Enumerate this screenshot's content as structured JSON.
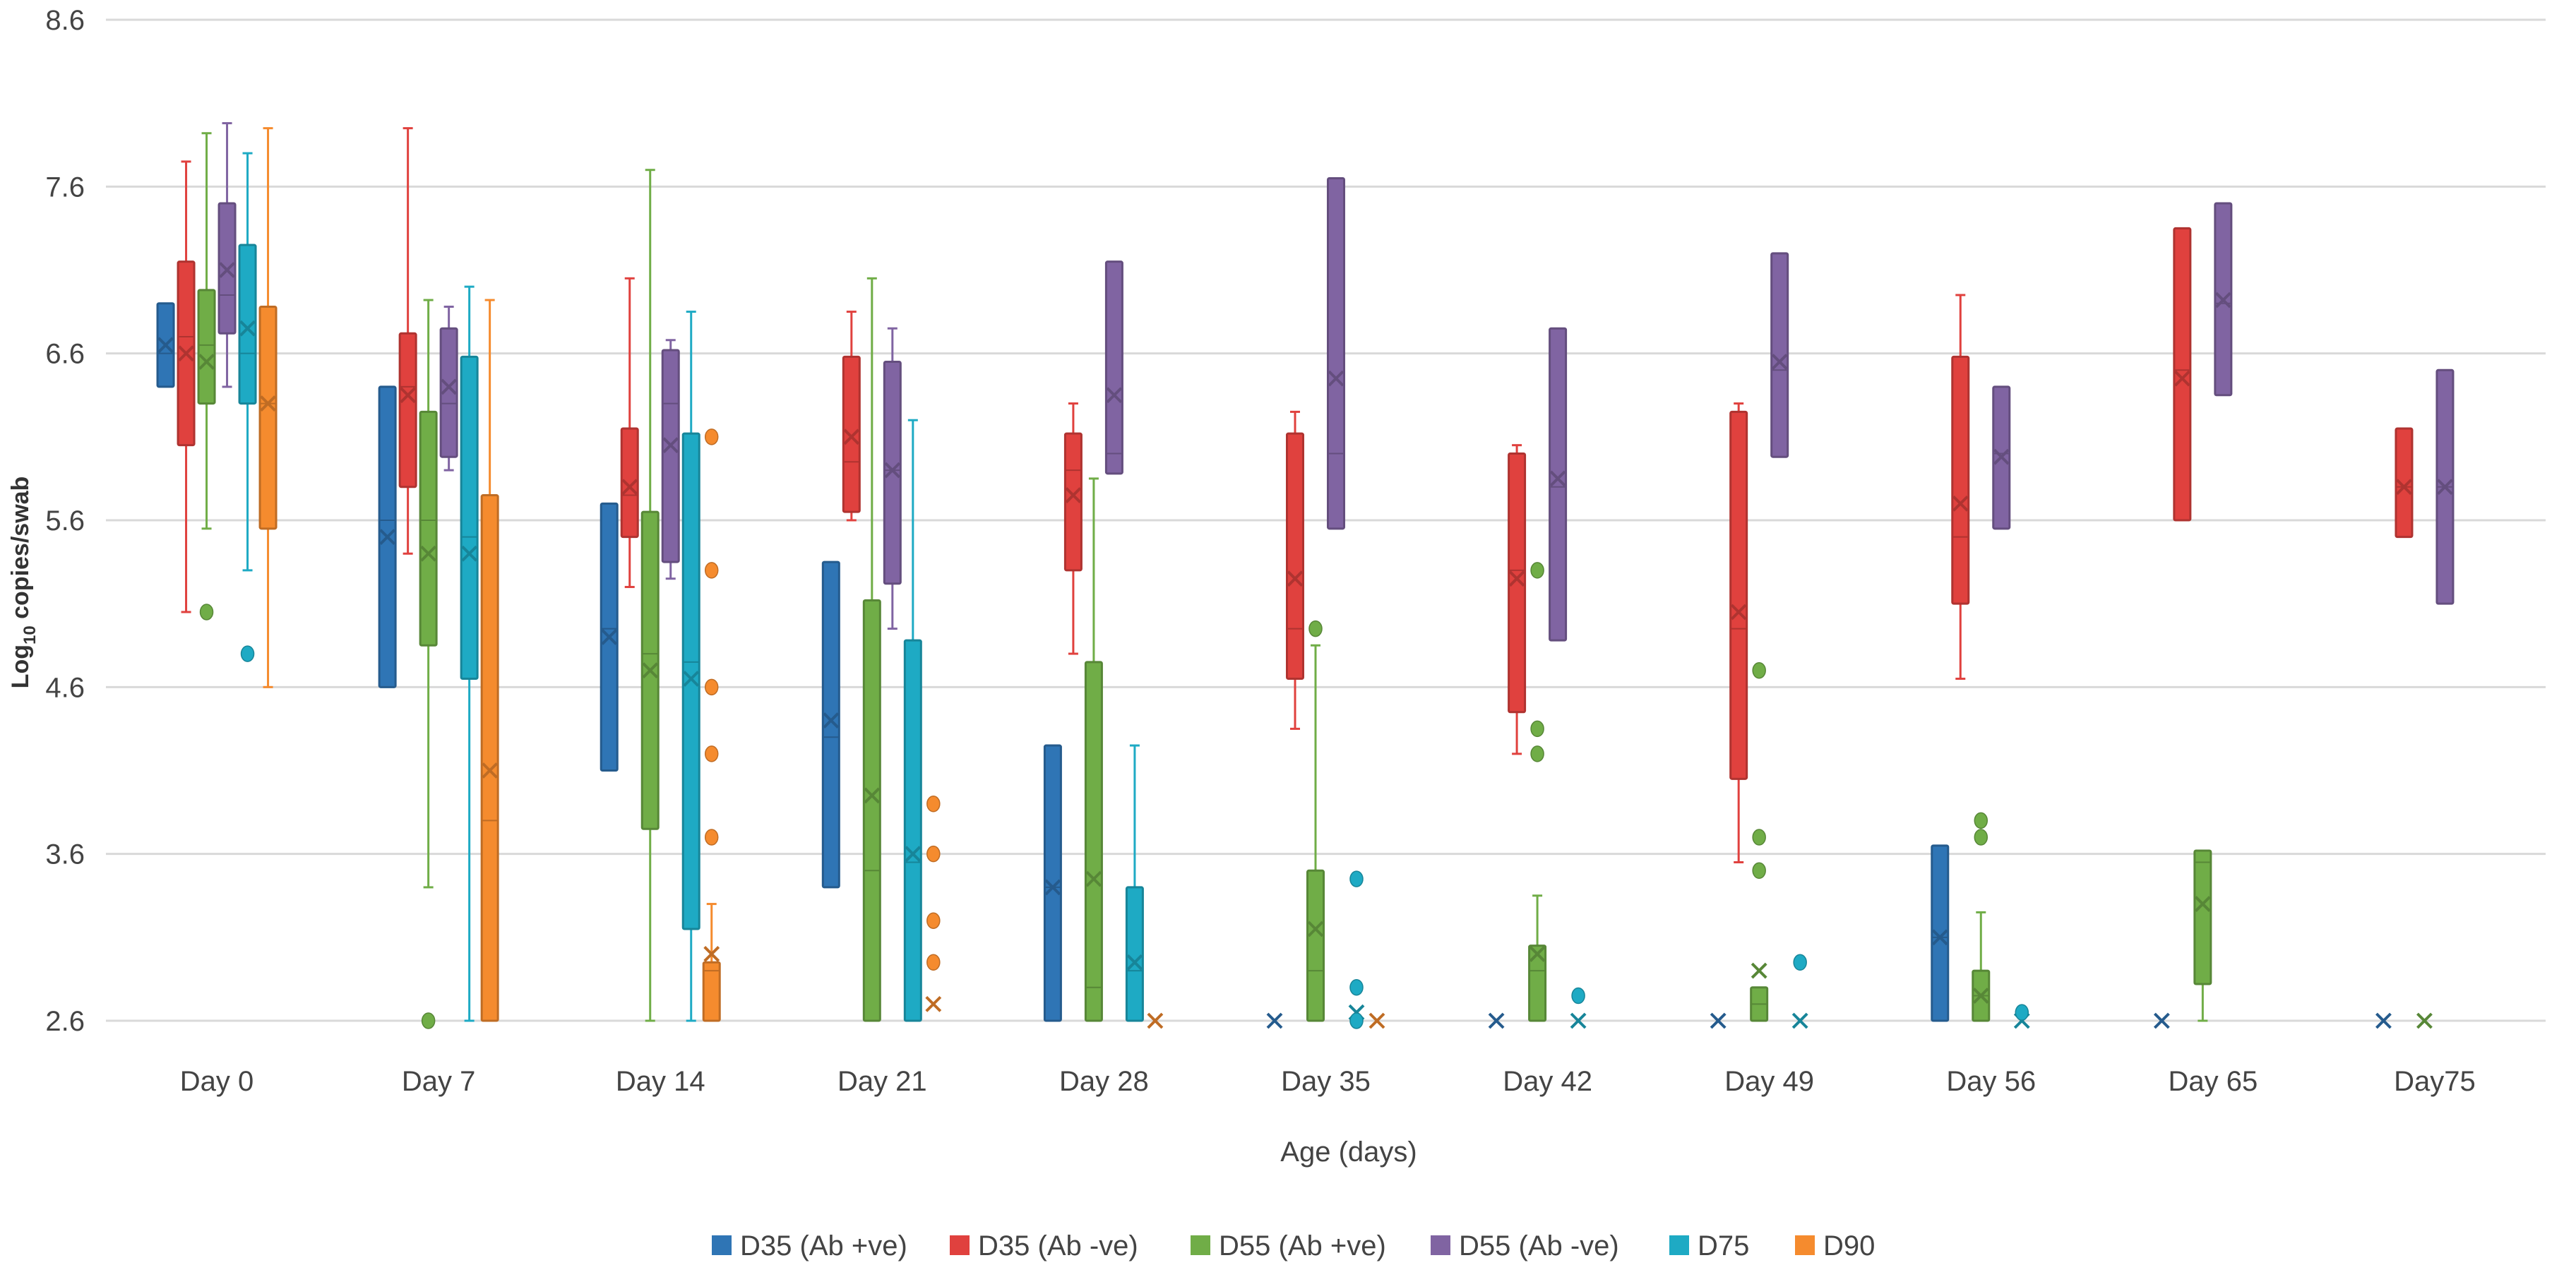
{
  "chart_data": {
    "type": "box",
    "xlabel": "Age (days)",
    "ylabel": "Log10 copies/swab",
    "ylabel_parts": {
      "base": "Log",
      "sub": "10",
      "rest": " copies/swab"
    },
    "ylim": [
      2.6,
      8.6
    ],
    "yticks": [
      "2.6",
      "3.6",
      "4.6",
      "5.6",
      "6.6",
      "7.6",
      "8.6"
    ],
    "grid": true,
    "legend_position": "bottom",
    "categories": [
      "Day 0",
      "Day 7",
      "Day 14",
      "Day 21",
      "Day 28",
      "Day 35",
      "Day 42",
      "Day 49",
      "Day 56",
      "Day 65",
      "Day75"
    ],
    "series": [
      {
        "name": "D35 (Ab +ve)",
        "color": "#2f75b5",
        "boxes": [
          {
            "q1": 6.4,
            "median": 6.6,
            "q3": 6.9,
            "mean": 6.65
          },
          {
            "q1": 4.6,
            "median": 5.6,
            "q3": 6.4,
            "mean": 5.5
          },
          {
            "q1": 4.1,
            "median": 4.95,
            "q3": 5.7,
            "mean": 4.9
          },
          {
            "q1": 3.4,
            "median": 4.3,
            "q3": 5.35,
            "mean": 4.4
          },
          {
            "q1": 2.6,
            "median": 3.4,
            "q3": 4.25,
            "mean": 3.4
          },
          {
            "mean": 2.6
          },
          {
            "mean": 2.6
          },
          {
            "mean": 2.6
          },
          {
            "q1": 2.6,
            "median": 3.1,
            "q3": 3.65,
            "mean": 3.1
          },
          {
            "mean": 2.6
          },
          {
            "mean": 2.6
          }
        ]
      },
      {
        "name": "D35 (Ab -ve)",
        "color": "#e0413e",
        "boxes": [
          {
            "q1": 6.05,
            "median": 6.7,
            "q3": 7.15,
            "min": 5.05,
            "max": 7.75,
            "mean": 6.6
          },
          {
            "q1": 5.8,
            "median": 6.4,
            "q3": 6.72,
            "min": 5.4,
            "max": 7.95,
            "mean": 6.35
          },
          {
            "q1": 5.5,
            "median": 5.75,
            "q3": 6.15,
            "min": 5.2,
            "max": 7.05,
            "mean": 5.8
          },
          {
            "q1": 5.65,
            "median": 5.95,
            "q3": 6.58,
            "min": 5.6,
            "max": 6.85,
            "mean": 6.1
          },
          {
            "q1": 5.3,
            "median": 5.9,
            "q3": 6.12,
            "min": 4.8,
            "max": 6.3,
            "mean": 5.75
          },
          {
            "q1": 4.65,
            "median": 4.95,
            "q3": 6.12,
            "min": 4.35,
            "max": 6.25,
            "mean": 5.25
          },
          {
            "q1": 4.45,
            "median": 5.3,
            "q3": 6.0,
            "min": 4.2,
            "max": 6.05,
            "mean": 5.25
          },
          {
            "q1": 4.05,
            "median": 4.95,
            "q3": 6.25,
            "min": 3.55,
            "max": 6.3,
            "mean": 5.05
          },
          {
            "q1": 5.1,
            "median": 5.5,
            "q3": 6.58,
            "min": 4.65,
            "max": 6.95,
            "mean": 5.7
          },
          {
            "q1": 5.6,
            "median": 6.5,
            "q3": 7.35,
            "mean": 6.45
          },
          {
            "q1": 5.5,
            "median": 5.8,
            "q3": 6.15,
            "mean": 5.8
          }
        ]
      },
      {
        "name": "D55 (Ab +ve)",
        "color": "#70ad47",
        "boxes": [
          {
            "q1": 6.3,
            "median": 6.65,
            "q3": 6.98,
            "min": 5.55,
            "max": 7.92,
            "mean": 6.55,
            "outliers": [
              5.05
            ]
          },
          {
            "q1": 4.85,
            "median": 5.6,
            "q3": 6.25,
            "min": 3.4,
            "max": 6.92,
            "mean": 5.4,
            "outliers": [
              2.6
            ]
          },
          {
            "q1": 3.75,
            "median": 4.8,
            "q3": 5.65,
            "min": 2.6,
            "max": 7.7,
            "mean": 4.7
          },
          {
            "q1": 2.6,
            "median": 3.5,
            "q3": 5.12,
            "min": 2.6,
            "max": 7.05,
            "mean": 3.95
          },
          {
            "q1": 2.6,
            "median": 2.8,
            "q3": 4.75,
            "min": 2.6,
            "max": 5.85,
            "mean": 3.45
          },
          {
            "q1": 2.6,
            "median": 2.9,
            "q3": 3.5,
            "min": 2.6,
            "max": 4.85,
            "mean": 3.15,
            "outliers": [
              4.95
            ]
          },
          {
            "q1": 2.6,
            "median": 2.9,
            "q3": 3.05,
            "min": 2.6,
            "max": 3.35,
            "mean": 3.0,
            "outliers": [
              5.3,
              4.35,
              4.2
            ]
          },
          {
            "q1": 2.6,
            "median": 2.7,
            "q3": 2.8,
            "mean": 2.9,
            "outliers": [
              4.7,
              3.7,
              3.5
            ]
          },
          {
            "q1": 2.6,
            "median": 2.75,
            "q3": 2.9,
            "min": 2.6,
            "max": 3.25,
            "mean": 2.75,
            "outliers": [
              3.8,
              3.7
            ]
          },
          {
            "q1": 2.82,
            "median": 3.55,
            "q3": 3.62,
            "min": 2.6,
            "max": 3.62,
            "mean": 3.3
          },
          {
            "mean": 2.6
          }
        ]
      },
      {
        "name": "D55 (Ab -ve)",
        "color": "#8064a2",
        "boxes": [
          {
            "q1": 6.72,
            "median": 6.95,
            "q3": 7.5,
            "min": 6.4,
            "max": 7.98,
            "mean": 7.1
          },
          {
            "q1": 5.98,
            "median": 6.3,
            "q3": 6.75,
            "min": 5.9,
            "max": 6.88,
            "mean": 6.4
          },
          {
            "q1": 5.35,
            "median": 6.3,
            "q3": 6.62,
            "min": 5.25,
            "max": 6.68,
            "mean": 6.05
          },
          {
            "q1": 5.22,
            "median": 5.9,
            "q3": 6.55,
            "min": 4.95,
            "max": 6.75,
            "mean": 5.9
          },
          {
            "q1": 5.88,
            "median": 6.0,
            "q3": 7.15,
            "mean": 6.35
          },
          {
            "q1": 5.55,
            "median": 6.0,
            "q3": 7.65,
            "mean": 6.45
          },
          {
            "q1": 4.88,
            "median": 5.8,
            "q3": 6.75,
            "mean": 5.85
          },
          {
            "q1": 5.98,
            "median": 6.5,
            "q3": 7.2,
            "mean": 6.55
          },
          {
            "q1": 5.55,
            "median": 6.0,
            "q3": 6.4,
            "mean": 5.98
          },
          {
            "q1": 6.35,
            "median": 6.9,
            "q3": 7.5,
            "mean": 6.92
          },
          {
            "q1": 5.1,
            "median": 5.8,
            "q3": 6.5,
            "mean": 5.8
          }
        ]
      },
      {
        "name": "D75",
        "color": "#1eaac4",
        "boxes": [
          {
            "q1": 6.3,
            "median": 6.6,
            "q3": 7.25,
            "min": 5.3,
            "max": 7.8,
            "mean": 6.75,
            "outliers": [
              4.8
            ]
          },
          {
            "q1": 4.65,
            "median": 5.5,
            "q3": 6.58,
            "min": 2.6,
            "max": 7.0,
            "mean": 5.4
          },
          {
            "q1": 3.15,
            "median": 4.75,
            "q3": 6.12,
            "min": 2.6,
            "max": 6.85,
            "mean": 4.65
          },
          {
            "q1": 2.6,
            "median": 3.55,
            "q3": 4.88,
            "min": 2.6,
            "max": 6.2,
            "mean": 3.6
          },
          {
            "q1": 2.6,
            "median": 2.9,
            "q3": 3.4,
            "min": 2.6,
            "max": 4.25,
            "mean": 2.95
          },
          {
            "mean": 2.65,
            "outliers": [
              3.45,
              2.8,
              2.6
            ]
          },
          {
            "mean": 2.6,
            "outliers": [
              2.75
            ]
          },
          {
            "mean": 2.6,
            "outliers": [
              2.95
            ]
          },
          {
            "mean": 2.6,
            "outliers": [
              2.65
            ]
          },
          {},
          {}
        ]
      },
      {
        "name": "D90",
        "color": "#f58b2e",
        "boxes": [
          {
            "q1": 5.55,
            "median": 6.3,
            "q3": 6.88,
            "min": 4.6,
            "max": 7.95,
            "mean": 6.3
          },
          {
            "q1": 2.6,
            "median": 3.8,
            "q3": 5.75,
            "min": 2.6,
            "max": 6.92,
            "mean": 4.1
          },
          {
            "q1": 2.6,
            "median": 2.9,
            "q3": 2.95,
            "min": 2.6,
            "max": 3.3,
            "mean": 3.0,
            "outliers": [
              6.1,
              5.3,
              4.6,
              4.2,
              3.7
            ]
          },
          {
            "mean": 2.7,
            "outliers": [
              3.9,
              3.6,
              3.2,
              2.95
            ]
          },
          {
            "mean": 2.6
          },
          {
            "mean": 2.6
          },
          {},
          {},
          {},
          {},
          {}
        ]
      }
    ]
  }
}
